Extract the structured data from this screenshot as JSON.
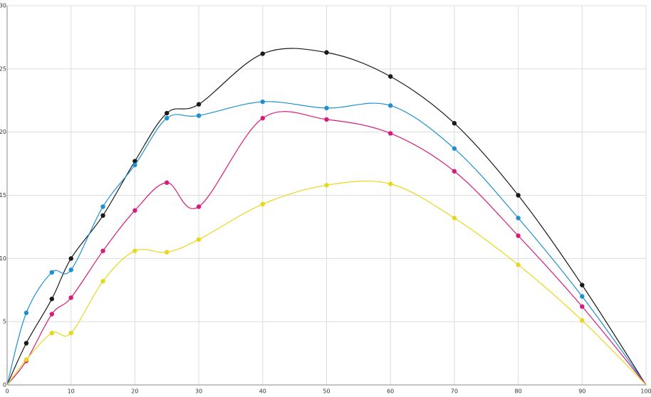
{
  "chart_data": {
    "type": "line",
    "x": [
      0,
      3,
      7,
      10,
      15,
      20,
      25,
      30,
      40,
      50,
      60,
      70,
      80,
      90,
      100
    ],
    "series": [
      {
        "color": "#1a1a1a",
        "values": [
          0,
          3.3,
          6.8,
          10.0,
          13.4,
          17.7,
          21.5,
          22.2,
          26.2,
          26.3,
          24.4,
          20.7,
          15.0,
          7.9,
          0
        ]
      },
      {
        "color": "#1e90d0",
        "values": [
          0,
          5.7,
          8.9,
          9.1,
          14.1,
          17.4,
          21.1,
          21.3,
          22.4,
          21.9,
          22.1,
          18.7,
          13.2,
          7.0,
          0
        ]
      },
      {
        "color": "#d81b7a",
        "values": [
          0,
          1.9,
          5.6,
          6.9,
          10.6,
          13.8,
          16.0,
          14.1,
          21.1,
          21.0,
          19.9,
          16.9,
          11.8,
          6.2,
          0
        ]
      },
      {
        "color": "#e8d81c",
        "values": [
          0,
          2.0,
          4.1,
          4.1,
          8.2,
          10.6,
          10.5,
          11.5,
          14.3,
          15.8,
          15.9,
          13.2,
          9.5,
          5.1,
          0
        ]
      }
    ],
    "xlim": [
      0,
      100
    ],
    "xticks": [
      0,
      10,
      20,
      30,
      40,
      50,
      60,
      70,
      80,
      90,
      100
    ],
    "ylim": [
      0,
      30
    ],
    "yticks": [
      0,
      5,
      10,
      15,
      20,
      25,
      30
    ],
    "grid": true
  }
}
